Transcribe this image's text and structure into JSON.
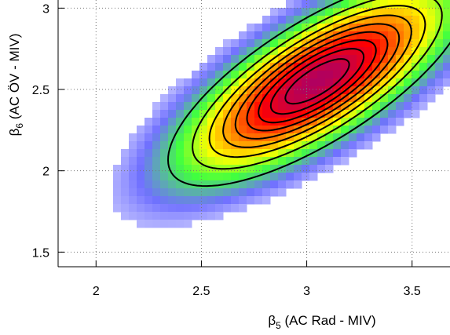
{
  "chart_data": {
    "type": "heatmap",
    "subtype": "2d-density-with-contours",
    "title": "",
    "xlabel": {
      "symbol": "β",
      "subscript": "5",
      "text": " (AC Rad - MIV)"
    },
    "ylabel": {
      "symbol": "β",
      "subscript": "6",
      "text": " (AC ÖV - MIV)"
    },
    "xlim": [
      1.82,
      3.68
    ],
    "ylim": [
      1.41,
      3.05
    ],
    "x_ticks": [
      2,
      2.5,
      3,
      3.5
    ],
    "y_ticks": [
      1.5,
      2,
      2.5,
      3
    ],
    "x_tick_labels": [
      "2",
      "2.5",
      "3",
      "3.5"
    ],
    "y_tick_labels": [
      "1.5",
      "2",
      "2.5",
      "3"
    ],
    "grid": true,
    "grid_style": "dotted",
    "colormap": [
      "#ffffff",
      "#7070ff",
      "#40ff40",
      "#ffff00",
      "#ff8000",
      "#ff0000",
      "#b00060"
    ],
    "density": {
      "mean": [
        3.05,
        2.55
      ],
      "sd": [
        0.33,
        0.3
      ],
      "correlation": 0.75
    },
    "contour_levels": [
      0.1,
      0.2,
      0.3,
      0.4,
      0.5,
      0.6,
      0.7,
      0.8,
      0.9
    ],
    "contour_color": "#000000"
  }
}
